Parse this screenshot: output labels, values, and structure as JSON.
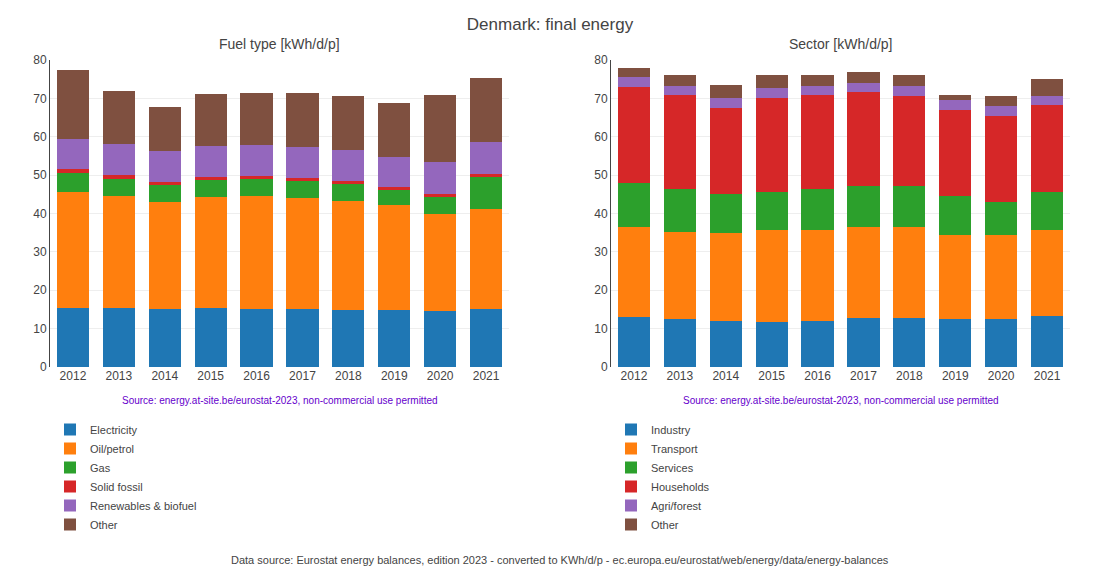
{
  "title": "Denmark: final energy",
  "annotations": [
    "Data source: Eurostat energy balances, edition 2023 - converted to KWh/d/p - ec.europa.eu/eurostat/web/energy/data/energy-balances"
  ],
  "chart_data": [
    {
      "type": "bar",
      "stacked": true,
      "title": "Fuel type [kWh/d/p]",
      "categories": [
        "2012",
        "2013",
        "2014",
        "2015",
        "2016",
        "2017",
        "2018",
        "2019",
        "2020",
        "2021"
      ],
      "series": [
        {
          "name": "Electricity",
          "color": "#1f77b4",
          "values": [
            15.5,
            15.5,
            15.0,
            15.3,
            15.0,
            15.0,
            14.8,
            14.8,
            14.5,
            15.2
          ]
        },
        {
          "name": "Oil/petrol",
          "color": "#ff7f0e",
          "values": [
            30.0,
            29.0,
            28.0,
            29.0,
            29.5,
            29.0,
            28.5,
            27.5,
            25.5,
            26.0
          ]
        },
        {
          "name": "Gas",
          "color": "#2ca02c",
          "values": [
            5.0,
            4.5,
            4.5,
            4.5,
            4.5,
            4.5,
            4.5,
            4.0,
            4.5,
            8.5
          ]
        },
        {
          "name": "Solid fossil",
          "color": "#d62728",
          "values": [
            1.0,
            1.0,
            0.8,
            0.8,
            0.8,
            0.8,
            0.8,
            0.5,
            0.5,
            0.5
          ]
        },
        {
          "name": "Renewables & biofuel",
          "color": "#9467bd",
          "values": [
            8.0,
            8.0,
            8.0,
            8.0,
            8.0,
            8.0,
            8.0,
            8.0,
            8.5,
            8.5
          ]
        },
        {
          "name": "Other",
          "color": "#7f5040",
          "values": [
            18.0,
            14.0,
            11.5,
            13.5,
            13.5,
            14.0,
            14.0,
            14.0,
            17.5,
            16.5
          ]
        }
      ],
      "ylim": [
        0,
        80
      ],
      "yticks": [
        0,
        10,
        20,
        30,
        40,
        50,
        60,
        70,
        80
      ],
      "grid": true,
      "legend": "bottom",
      "annotations": [
        {
          "text": "Source: energy.at-site.be/eurostat-2023, non-commercial use permitted",
          "color": "#6600cc"
        }
      ]
    },
    {
      "type": "bar",
      "stacked": true,
      "title": "Sector [kWh/d/p]",
      "categories": [
        "2012",
        "2013",
        "2014",
        "2015",
        "2016",
        "2017",
        "2018",
        "2019",
        "2020",
        "2021"
      ],
      "series": [
        {
          "name": "Industry",
          "color": "#1f77b4",
          "values": [
            13.0,
            12.5,
            12.0,
            11.8,
            12.0,
            12.8,
            12.8,
            12.5,
            12.5,
            13.2
          ]
        },
        {
          "name": "Transport",
          "color": "#ff7f0e",
          "values": [
            23.5,
            22.8,
            23.0,
            23.8,
            23.8,
            23.8,
            23.8,
            22.0,
            22.0,
            22.5
          ]
        },
        {
          "name": "Services",
          "color": "#2ca02c",
          "values": [
            11.5,
            11.0,
            10.0,
            10.0,
            10.5,
            10.5,
            10.5,
            10.0,
            8.5,
            10.0
          ]
        },
        {
          "name": "Households",
          "color": "#d62728",
          "values": [
            25.0,
            24.5,
            22.5,
            24.5,
            24.5,
            24.5,
            23.5,
            22.5,
            22.5,
            22.5
          ]
        },
        {
          "name": "Agri/forest",
          "color": "#9467bd",
          "values": [
            2.5,
            2.5,
            2.5,
            2.5,
            2.5,
            2.5,
            2.5,
            2.5,
            2.5,
            2.5
          ]
        },
        {
          "name": "Other",
          "color": "#7f5040",
          "values": [
            2.5,
            2.7,
            3.4,
            3.4,
            2.7,
            2.9,
            2.9,
            1.5,
            2.5,
            4.3
          ]
        }
      ],
      "ylim": [
        0,
        80
      ],
      "yticks": [
        0,
        10,
        20,
        30,
        40,
        50,
        60,
        70,
        80
      ],
      "grid": true,
      "legend": "bottom",
      "annotations": [
        {
          "text": "Source: energy.at-site.be/eurostat-2023, non-commercial use permitted",
          "color": "#6600cc"
        }
      ]
    }
  ]
}
